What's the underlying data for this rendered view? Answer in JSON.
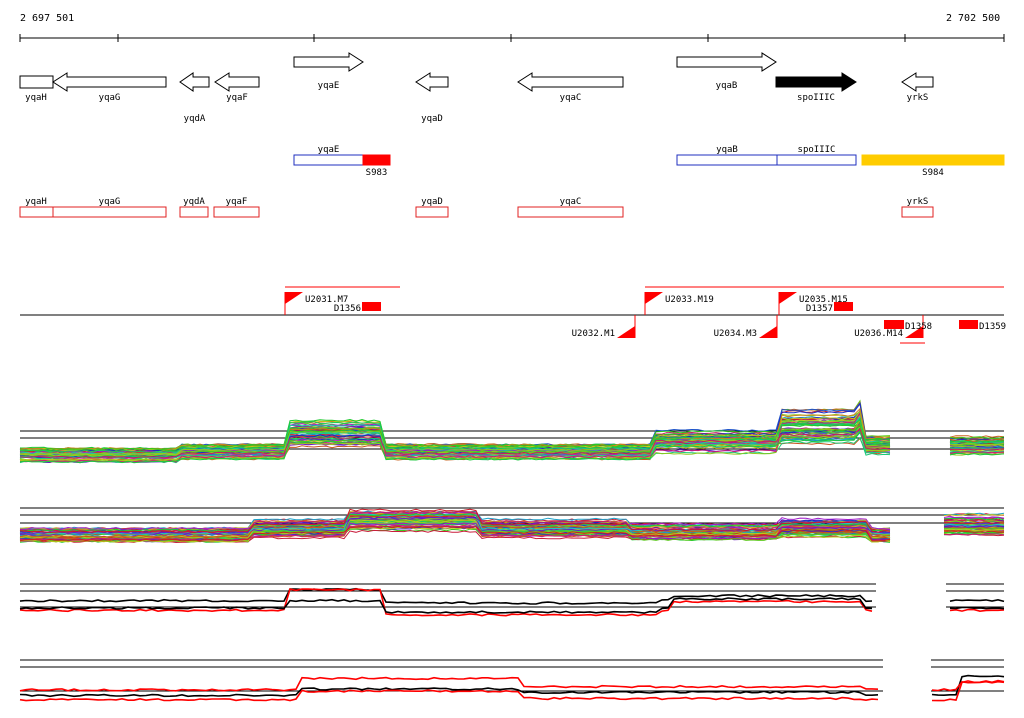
{
  "ruler": {
    "start_label": "2 697 501",
    "end_label": "2 702 500",
    "start_bp": 2697501,
    "end_bp": 2702500
  },
  "colors": {
    "gene_outline": "#000000",
    "gene_highlight": "#000000",
    "segment_blue": "#1f2fbf",
    "segment_red_fill": "#ff0000",
    "segment_orange": "#ffcc00",
    "feature_outline_red": "#e02020",
    "marker_red": "#ff0000",
    "profile_black": "#000000",
    "profile_red": "#ff0000"
  },
  "genes": [
    {
      "name": "yqaH",
      "strand": "+",
      "label_row": 1,
      "highlight": false
    },
    {
      "name": "yqaG",
      "strand": "-",
      "label_row": 1,
      "highlight": false
    },
    {
      "name": "yqdA",
      "strand": "-",
      "label_row": 2,
      "highlight": false
    },
    {
      "name": "yqaF",
      "strand": "-",
      "label_row": 1,
      "highlight": false
    },
    {
      "name": "yqaE",
      "strand": "+",
      "label_row": 0,
      "highlight": false
    },
    {
      "name": "yqaD",
      "strand": "-",
      "label_row": 2,
      "highlight": false
    },
    {
      "name": "yqaC",
      "strand": "-",
      "label_row": 1,
      "highlight": false
    },
    {
      "name": "yqaB",
      "strand": "+",
      "label_row": 0,
      "highlight": false
    },
    {
      "name": "spoIIIC",
      "strand": "+",
      "label_row": 1,
      "highlight": true
    },
    {
      "name": "yrkS",
      "strand": "-",
      "label_row": 1,
      "highlight": false
    }
  ],
  "segments": [
    {
      "name": "yqaE",
      "kind": "blue"
    },
    {
      "name": "S983",
      "kind": "red"
    },
    {
      "name": "yqaB",
      "kind": "blue"
    },
    {
      "name": "spoIIIC",
      "kind": "blue"
    },
    {
      "name": "S984",
      "kind": "orange"
    }
  ],
  "features": [
    {
      "name": "yqaH"
    },
    {
      "name": "yqaG"
    },
    {
      "name": "yqdA"
    },
    {
      "name": "yqaF"
    },
    {
      "name": "yqaD"
    },
    {
      "name": "yqaC"
    },
    {
      "name": "yrkS"
    }
  ],
  "markers_upper": [
    {
      "name": "U2031.M7"
    },
    {
      "name": "U2033.M19"
    },
    {
      "name": "U2035.M15"
    }
  ],
  "markers_lower": [
    {
      "name": "U2032.M1"
    },
    {
      "name": "U2034.M3"
    },
    {
      "name": "U2036.M14"
    }
  ],
  "d_boxes": [
    {
      "name": "D1356"
    },
    {
      "name": "D1357"
    },
    {
      "name": "D1358"
    },
    {
      "name": "D1359"
    }
  ]
}
